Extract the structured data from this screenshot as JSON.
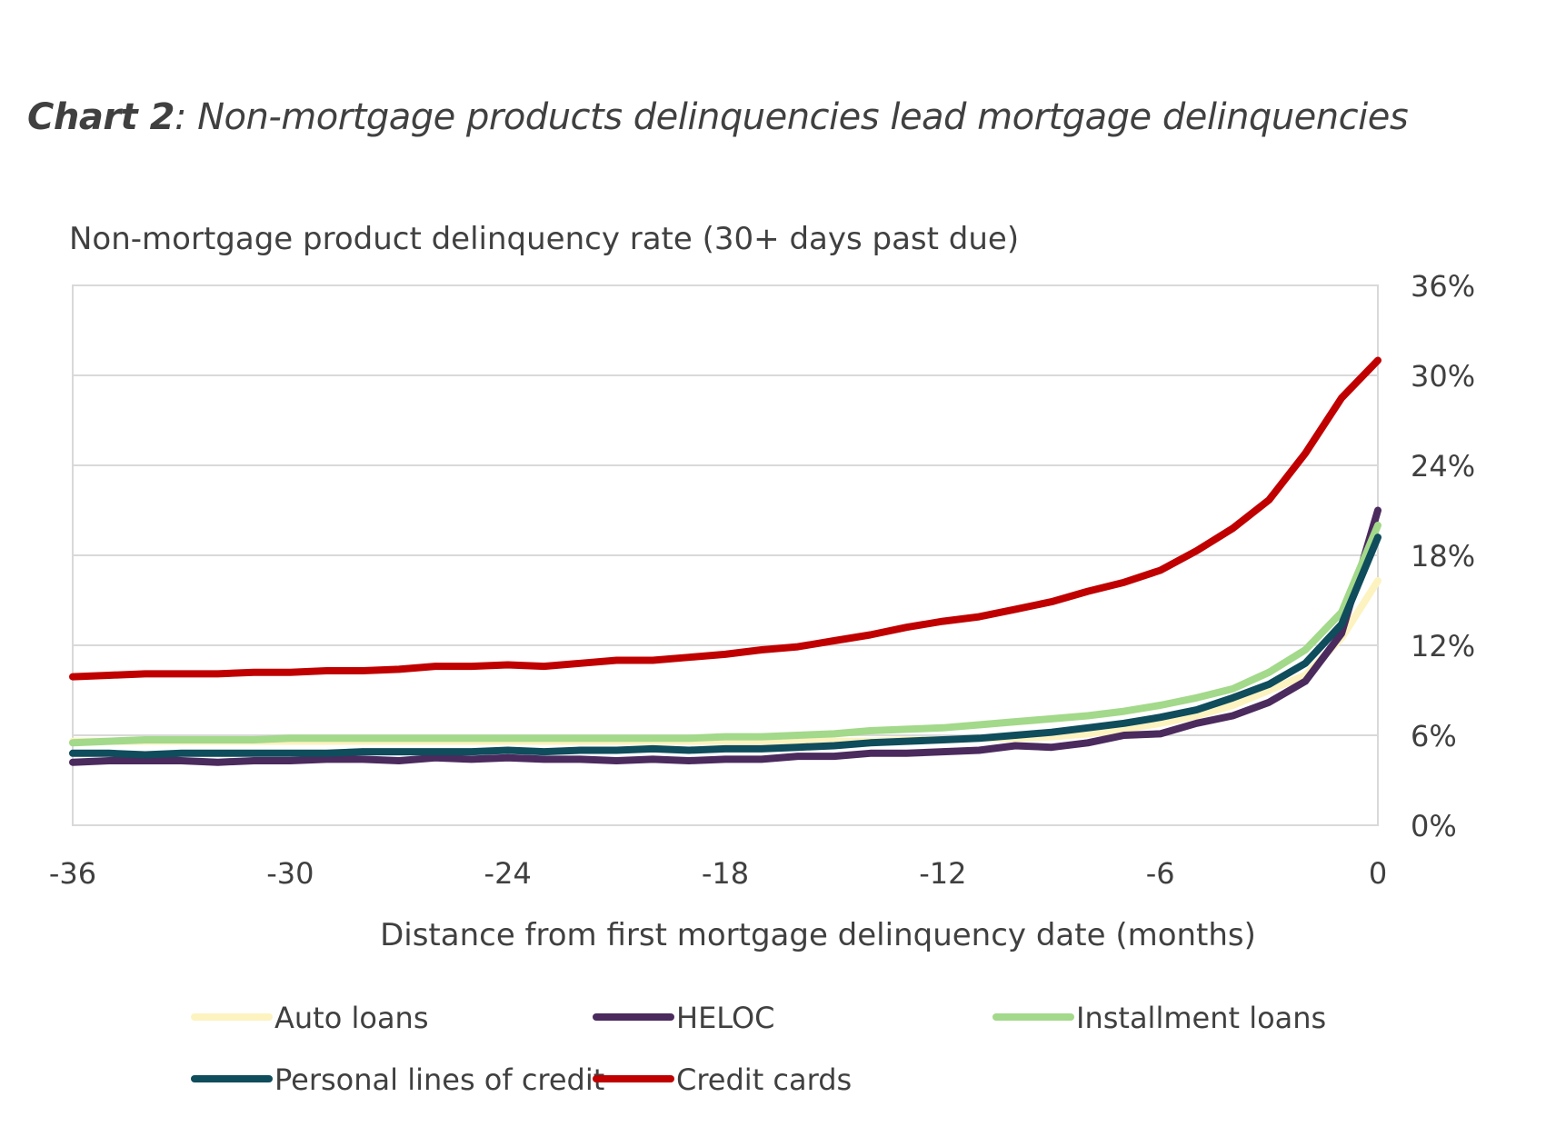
{
  "chart_title": {
    "label": "Chart 2",
    "text": ": Non-mortgage products delinquencies lead mortgage delinquencies"
  },
  "chart_data": {
    "type": "line",
    "title": "Chart 2: Non-mortgage products delinquencies lead mortgage delinquencies",
    "subtitle": "Non-mortgage product delinquency rate (30+ days past due)",
    "xlabel": "Distance from first mortgage delinquency date (months)",
    "ylabel": "",
    "xlim": [
      -36,
      0
    ],
    "ylim": [
      0,
      36
    ],
    "x_ticks": [
      -36,
      -30,
      -24,
      -18,
      -12,
      -6,
      0
    ],
    "x_tick_labels": [
      "-36",
      "-30",
      "-24",
      "-18",
      "-12",
      "-6",
      "0"
    ],
    "y_ticks": [
      0,
      6,
      12,
      18,
      24,
      30,
      36
    ],
    "y_tick_labels": [
      "0%",
      "6%",
      "12%",
      "18%",
      "24%",
      "30%",
      "36%"
    ],
    "y_axis_position": "right",
    "grid": true,
    "legend_position": "bottom",
    "x": [
      -36,
      -35,
      -34,
      -33,
      -32,
      -31,
      -30,
      -29,
      -28,
      -27,
      -26,
      -25,
      -24,
      -23,
      -22,
      -21,
      -20,
      -19,
      -18,
      -17,
      -16,
      -15,
      -14,
      -13,
      -12,
      -11,
      -10,
      -9,
      -8,
      -7,
      -6,
      -5,
      -4,
      -3,
      -2,
      -1,
      0
    ],
    "series": [
      {
        "name": "Auto loans",
        "color": "#fdf3c0",
        "values": [
          5.6,
          5.6,
          5.6,
          5.6,
          5.6,
          5.6,
          5.6,
          5.6,
          5.6,
          5.6,
          5.6,
          5.6,
          5.6,
          5.6,
          5.6,
          5.6,
          5.6,
          5.6,
          5.6,
          5.6,
          5.6,
          5.6,
          5.6,
          5.7,
          5.7,
          5.8,
          5.8,
          5.9,
          6.1,
          6.4,
          6.8,
          7.3,
          8.0,
          9.0,
          10.0,
          12.5,
          16.3
        ]
      },
      {
        "name": "HELOC",
        "color": "#4b2a5e",
        "values": [
          4.2,
          4.3,
          4.3,
          4.3,
          4.2,
          4.3,
          4.3,
          4.4,
          4.4,
          4.3,
          4.5,
          4.4,
          4.5,
          4.4,
          4.4,
          4.3,
          4.4,
          4.3,
          4.4,
          4.4,
          4.6,
          4.6,
          4.8,
          4.8,
          4.9,
          5.0,
          5.3,
          5.2,
          5.5,
          6.0,
          6.1,
          6.8,
          7.3,
          8.2,
          9.6,
          12.8,
          21.0
        ]
      },
      {
        "name": "Installment loans",
        "color": "#a3d98a",
        "values": [
          5.5,
          5.6,
          5.7,
          5.7,
          5.7,
          5.7,
          5.8,
          5.8,
          5.8,
          5.8,
          5.8,
          5.8,
          5.8,
          5.8,
          5.8,
          5.8,
          5.8,
          5.8,
          5.9,
          5.9,
          6.0,
          6.1,
          6.3,
          6.4,
          6.5,
          6.7,
          6.9,
          7.1,
          7.3,
          7.6,
          8.0,
          8.5,
          9.1,
          10.2,
          11.7,
          14.2,
          20.0
        ]
      },
      {
        "name": "Personal lines of credit",
        "color": "#0f4c5c",
        "values": [
          4.8,
          4.8,
          4.7,
          4.8,
          4.8,
          4.8,
          4.8,
          4.8,
          4.9,
          4.9,
          4.9,
          4.9,
          5.0,
          4.9,
          5.0,
          5.0,
          5.1,
          5.0,
          5.1,
          5.1,
          5.2,
          5.3,
          5.5,
          5.6,
          5.7,
          5.8,
          6.0,
          6.2,
          6.5,
          6.8,
          7.2,
          7.7,
          8.5,
          9.4,
          10.8,
          13.4,
          19.2
        ]
      },
      {
        "name": "Credit cards",
        "color": "#c00000",
        "values": [
          9.9,
          10.0,
          10.1,
          10.1,
          10.1,
          10.2,
          10.2,
          10.3,
          10.3,
          10.4,
          10.6,
          10.6,
          10.7,
          10.6,
          10.8,
          11.0,
          11.0,
          11.2,
          11.4,
          11.7,
          11.9,
          12.3,
          12.7,
          13.2,
          13.6,
          13.9,
          14.4,
          14.9,
          15.6,
          16.2,
          17.0,
          18.3,
          19.8,
          21.7,
          24.8,
          28.5,
          31.0
        ]
      }
    ],
    "legend_order": [
      "Auto loans",
      "HELOC",
      "Installment loans",
      "Personal lines of credit",
      "Credit cards"
    ]
  },
  "colors": {
    "grid": "#d9d9d9",
    "text": "#404040"
  }
}
